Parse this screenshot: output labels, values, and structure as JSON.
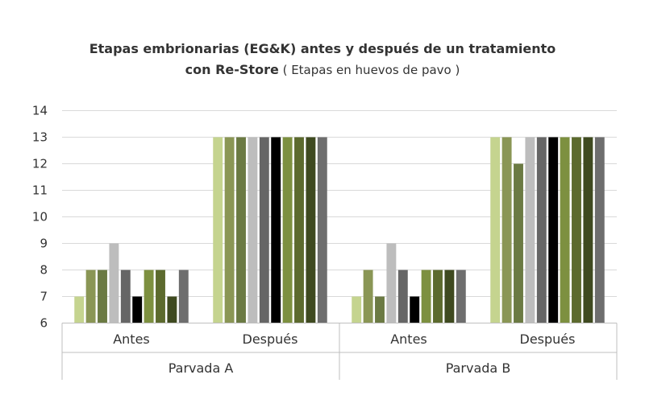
{
  "chart_data": {
    "type": "bar",
    "title_line1": "Etapas embrionarias (EG&K) antes y después de un tratamiento",
    "title_line2_bold": "con Re-Store",
    "title_line2_normal": " ( Etapas en huevos de pavo )",
    "xlabel": "",
    "ylabel": "",
    "ylim": [
      6,
      14
    ],
    "yticks": [
      6,
      7,
      8,
      9,
      10,
      11,
      12,
      13,
      14
    ],
    "grid": "horizontal",
    "legend": "none",
    "groups": [
      {
        "label": "Parvada  A",
        "categories": [
          {
            "label": "Antes",
            "values": [
              7,
              8,
              8,
              9,
              8,
              7,
              8,
              8,
              7,
              8
            ]
          },
          {
            "label": "Después",
            "values": [
              13,
              13,
              13,
              13,
              13,
              13,
              13,
              13,
              13,
              13
            ]
          }
        ]
      },
      {
        "label": "Parvada  B",
        "categories": [
          {
            "label": "Antes",
            "values": [
              7,
              8,
              7,
              9,
              8,
              7,
              8,
              8,
              8,
              8
            ]
          },
          {
            "label": "Después",
            "values": [
              13,
              13,
              12,
              13,
              13,
              13,
              13,
              13,
              13,
              13
            ]
          }
        ]
      }
    ],
    "bar_colors": [
      "#c5d48f",
      "#8a9655",
      "#6b7a43",
      "#bdbdbd",
      "#666666",
      "#000000",
      "#7d9040",
      "#5c6a2e",
      "#3f4a20",
      "#6e6e6e"
    ]
  }
}
